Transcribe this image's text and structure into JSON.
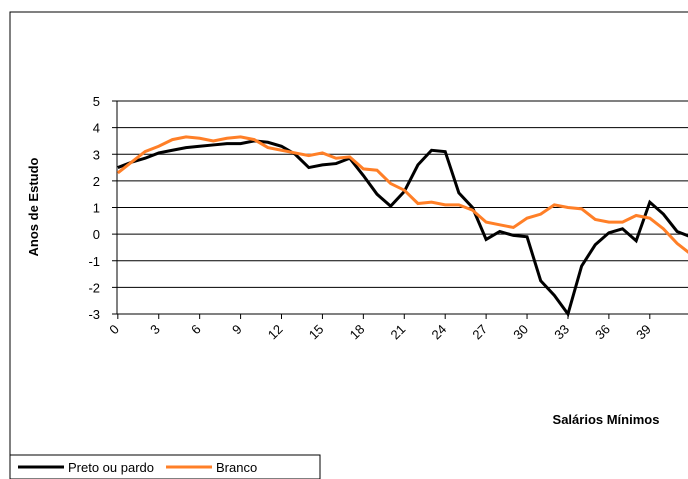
{
  "chart_data": {
    "type": "line",
    "x_label": "Salários Mínimos",
    "y_label": "Anos de Estudo",
    "x": [
      0,
      1,
      2,
      3,
      4,
      5,
      6,
      7,
      8,
      9,
      10,
      11,
      12,
      13,
      14,
      15,
      16,
      17,
      18,
      19,
      20,
      21,
      22,
      23,
      24,
      25,
      26,
      27,
      28,
      29,
      30,
      31,
      32,
      33,
      34,
      35,
      36,
      37,
      38,
      39,
      40,
      41,
      42
    ],
    "series": [
      {
        "name": "Preto ou pardo",
        "color": "#000000",
        "values": [
          2.5,
          2.7,
          2.85,
          3.05,
          3.15,
          3.25,
          3.3,
          3.35,
          3.4,
          3.4,
          3.5,
          3.45,
          3.3,
          3.0,
          2.5,
          2.6,
          2.65,
          2.85,
          2.2,
          1.5,
          1.05,
          1.6,
          2.6,
          3.15,
          3.1,
          1.55,
          1.0,
          -0.2,
          0.1,
          -0.05,
          -0.1,
          -1.75,
          -2.3,
          -3.0,
          -1.2,
          -0.4,
          0.05,
          0.2,
          -0.25,
          1.2,
          0.75,
          0.1,
          -0.1
        ]
      },
      {
        "name": "Branco",
        "color": "#ff7f27",
        "values": [
          2.3,
          2.7,
          3.1,
          3.3,
          3.55,
          3.65,
          3.6,
          3.5,
          3.6,
          3.65,
          3.55,
          3.25,
          3.15,
          3.05,
          2.95,
          3.05,
          2.85,
          2.9,
          2.45,
          2.4,
          1.9,
          1.65,
          1.15,
          1.2,
          1.1,
          1.1,
          0.9,
          0.45,
          0.35,
          0.25,
          0.6,
          0.75,
          1.1,
          1.0,
          0.95,
          0.55,
          0.45,
          0.45,
          0.7,
          0.6,
          0.2,
          -0.35,
          -0.75
        ]
      }
    ],
    "xlim": [
      -0.5,
      41.8
    ],
    "xticks": [
      0,
      3,
      6,
      9,
      12,
      15,
      18,
      21,
      24,
      27,
      30,
      33,
      36,
      39
    ],
    "ylim": [
      -3,
      5
    ],
    "yticks": [
      -3,
      -2,
      -1,
      0,
      1,
      2,
      3,
      4,
      5
    ],
    "grid": true
  }
}
